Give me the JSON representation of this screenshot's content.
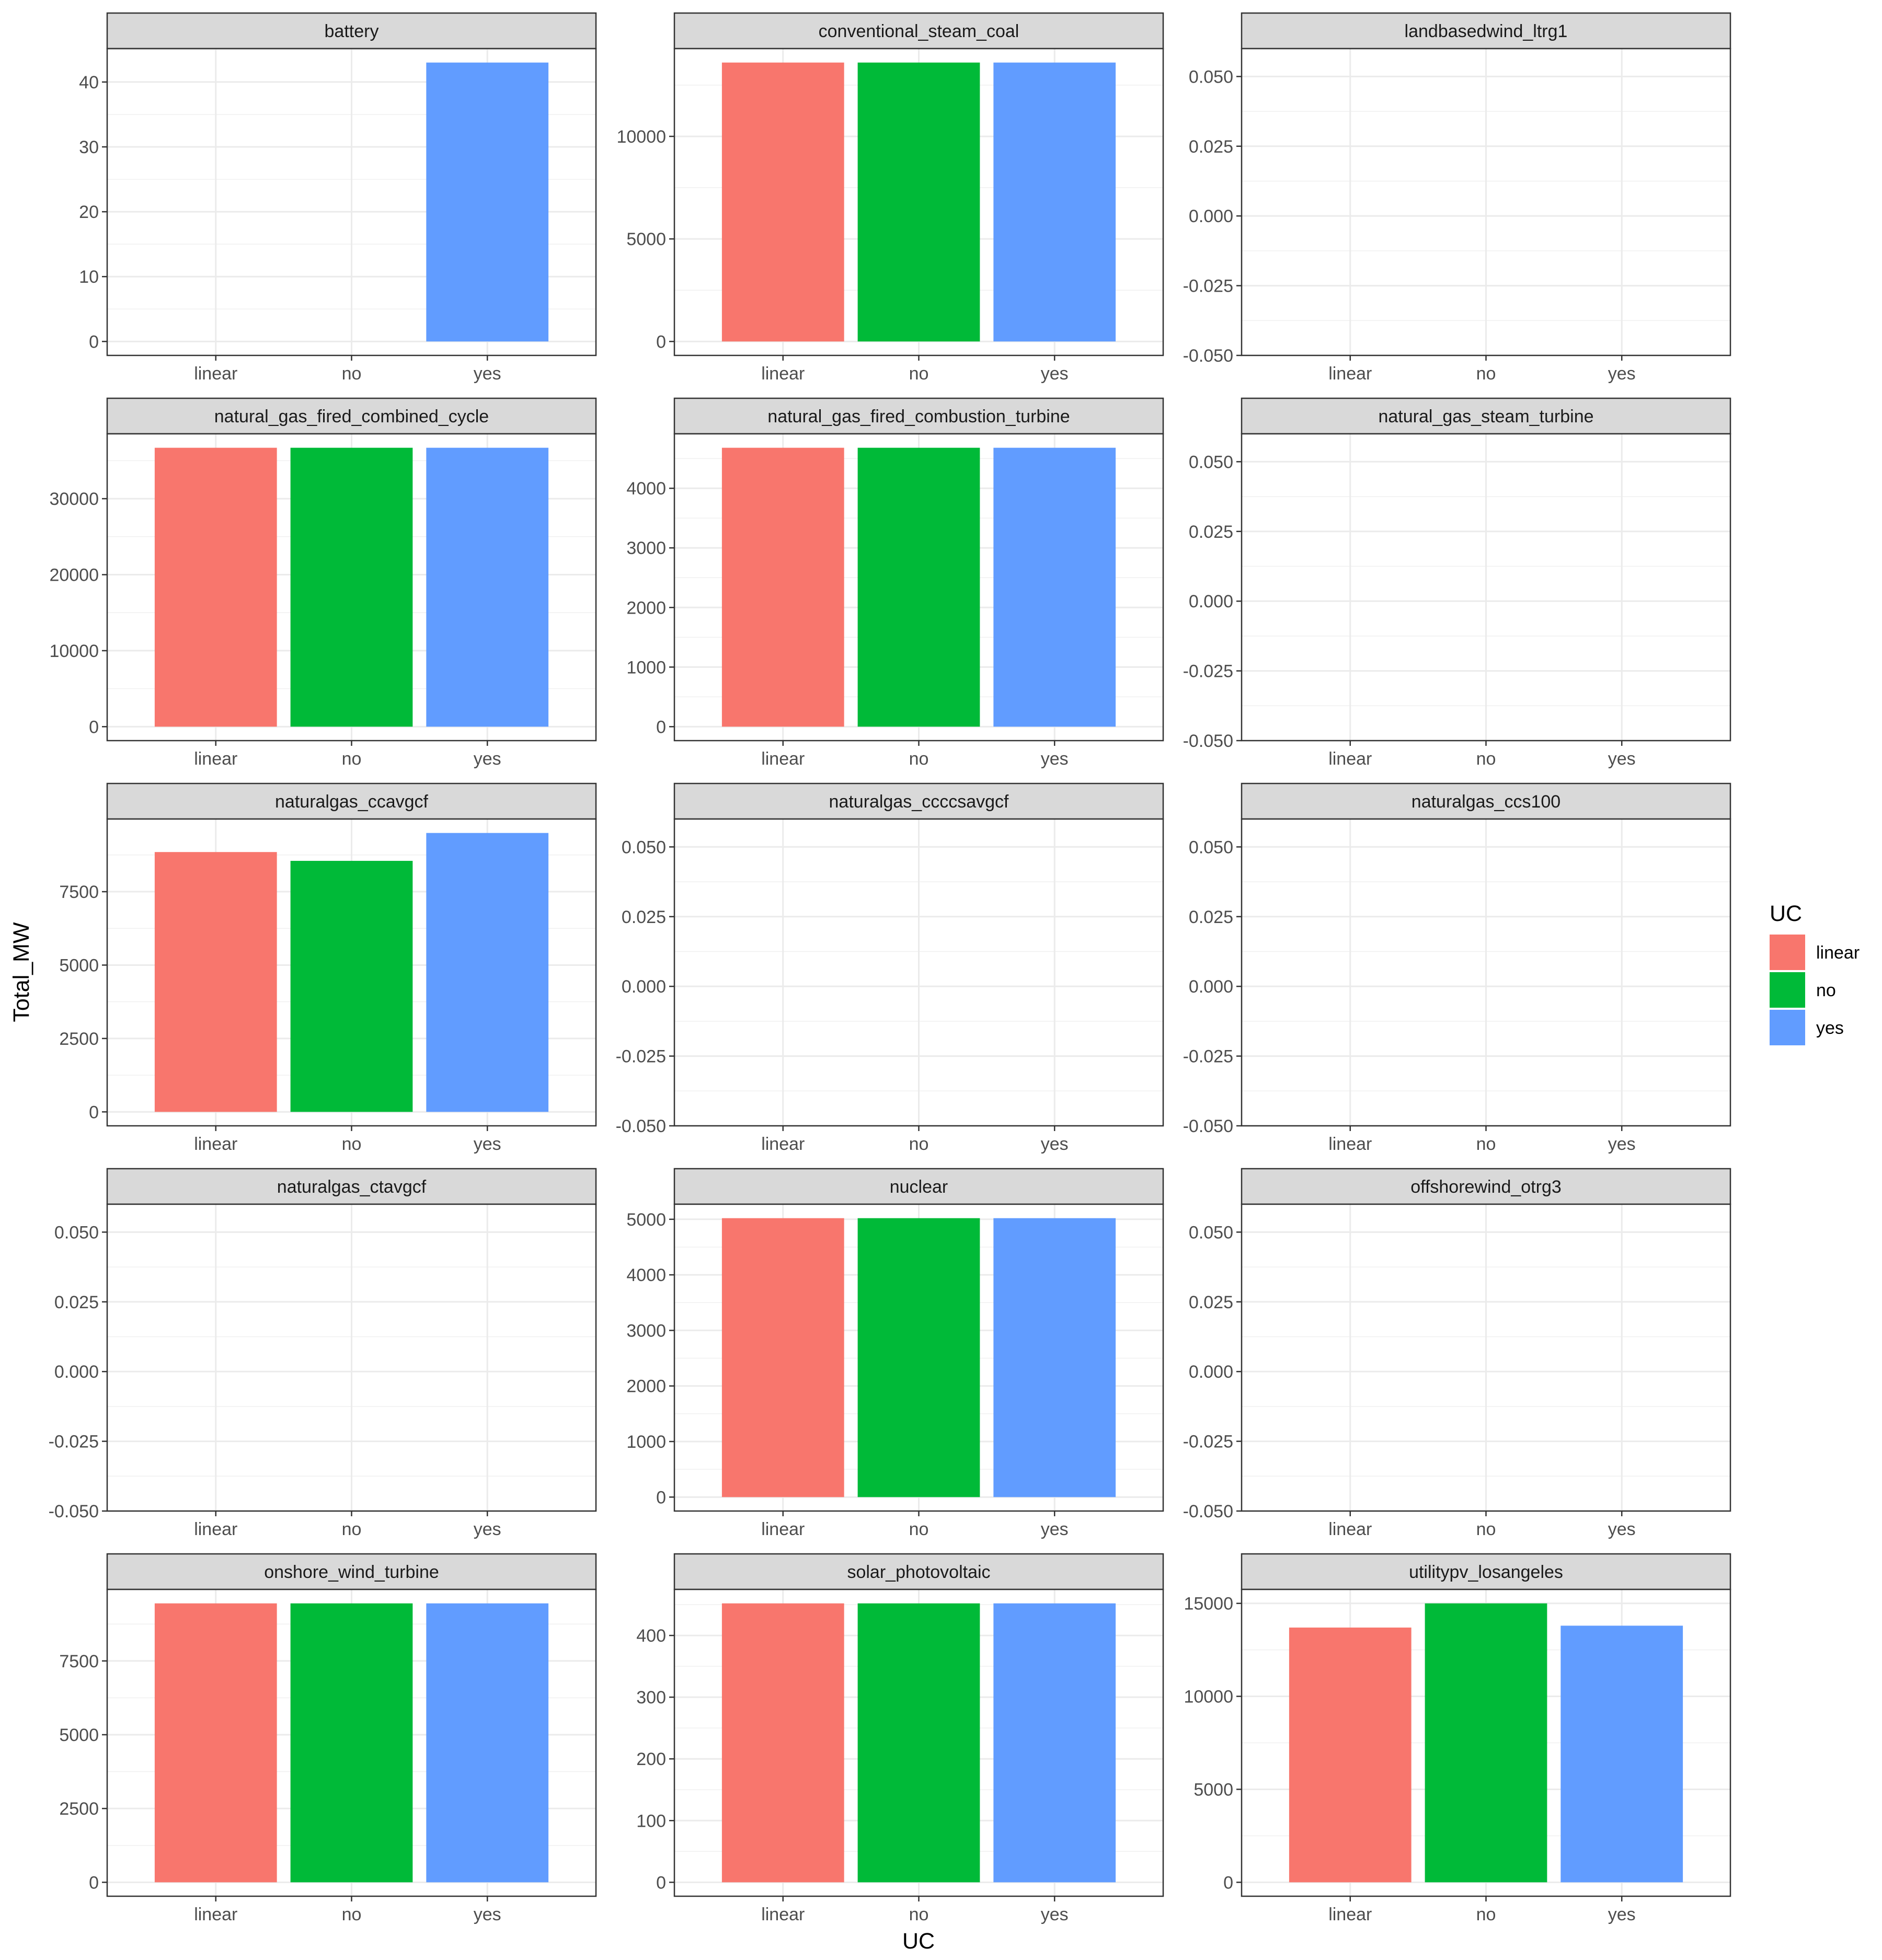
{
  "chart_data": {
    "type": "bar",
    "xlabel": "UC",
    "ylabel": "Total_MW",
    "categories": [
      "linear",
      "no",
      "yes"
    ],
    "legend": {
      "title": "UC",
      "position": "right",
      "entries": [
        "linear",
        "no",
        "yes"
      ]
    },
    "colors": {
      "linear": "#F8766D",
      "no": "#00BA38",
      "yes": "#619CFF"
    },
    "grid": true,
    "facets": [
      {
        "name": "battery",
        "values": [
          0,
          0,
          43
        ],
        "ylim": [
          -2.15,
          45.15
        ],
        "ticks": [
          0,
          10,
          20,
          30,
          40
        ],
        "tick_labels": [
          "0",
          "10",
          "20",
          "30",
          "40"
        ]
      },
      {
        "name": "conventional_steam_coal",
        "values": [
          13600,
          13600,
          13600
        ],
        "ylim": [
          -680,
          14280
        ],
        "ticks": [
          0,
          5000,
          10000
        ],
        "tick_labels": [
          "0",
          "5000",
          "10000"
        ]
      },
      {
        "name": "landbasedwind_ltrg1",
        "values": [
          0,
          0,
          0
        ],
        "ylim": [
          -0.05,
          0.06
        ],
        "ticks": [
          -0.05,
          -0.025,
          0,
          0.025,
          0.05
        ],
        "tick_labels": [
          "-0.050",
          "-0.025",
          "0.000",
          "0.025",
          "0.050"
        ]
      },
      {
        "name": "natural_gas_fired_combined_cycle",
        "values": [
          36700,
          36700,
          36700
        ],
        "ylim": [
          -1835,
          38535
        ],
        "ticks": [
          0,
          10000,
          20000,
          30000
        ],
        "tick_labels": [
          "0",
          "10000",
          "20000",
          "30000"
        ]
      },
      {
        "name": "natural_gas_fired_combustion_turbine",
        "values": [
          4680,
          4680,
          4680
        ],
        "ylim": [
          -234,
          4914
        ],
        "ticks": [
          0,
          1000,
          2000,
          3000,
          4000
        ],
        "tick_labels": [
          "0",
          "1000",
          "2000",
          "3000",
          "4000"
        ]
      },
      {
        "name": "natural_gas_steam_turbine",
        "values": [
          0,
          0,
          0
        ],
        "ylim": [
          -0.05,
          0.06
        ],
        "ticks": [
          -0.05,
          -0.025,
          0,
          0.025,
          0.05
        ],
        "tick_labels": [
          "-0.050",
          "-0.025",
          "0.000",
          "0.025",
          "0.050"
        ]
      },
      {
        "name": "naturalgas_ccavgcf",
        "values": [
          8850,
          8550,
          9500
        ],
        "ylim": [
          -475,
          9975
        ],
        "ticks": [
          0,
          2500,
          5000,
          7500
        ],
        "tick_labels": [
          "0",
          "2500",
          "5000",
          "7500"
        ]
      },
      {
        "name": "naturalgas_ccccsavgcf",
        "values": [
          0,
          0,
          0
        ],
        "ylim": [
          -0.05,
          0.06
        ],
        "ticks": [
          -0.05,
          -0.025,
          0,
          0.025,
          0.05
        ],
        "tick_labels": [
          "-0.050",
          "-0.025",
          "0.000",
          "0.025",
          "0.050"
        ]
      },
      {
        "name": "naturalgas_ccs100",
        "values": [
          0,
          0,
          0
        ],
        "ylim": [
          -0.05,
          0.06
        ],
        "ticks": [
          -0.05,
          -0.025,
          0,
          0.025,
          0.05
        ],
        "tick_labels": [
          "-0.050",
          "-0.025",
          "0.000",
          "0.025",
          "0.050"
        ]
      },
      {
        "name": "naturalgas_ctavgcf",
        "values": [
          0,
          0,
          0
        ],
        "ylim": [
          -0.05,
          0.06
        ],
        "ticks": [
          -0.05,
          -0.025,
          0,
          0.025,
          0.05
        ],
        "tick_labels": [
          "-0.050",
          "-0.025",
          "0.000",
          "0.025",
          "0.050"
        ]
      },
      {
        "name": "nuclear",
        "values": [
          5020,
          5020,
          5020
        ],
        "ylim": [
          -251,
          5271
        ],
        "ticks": [
          0,
          1000,
          2000,
          3000,
          4000,
          5000
        ],
        "tick_labels": [
          "0",
          "1000",
          "2000",
          "3000",
          "4000",
          "5000"
        ]
      },
      {
        "name": "offshorewind_otrg3",
        "values": [
          0,
          0,
          0
        ],
        "ylim": [
          -0.05,
          0.06
        ],
        "ticks": [
          -0.05,
          -0.025,
          0,
          0.025,
          0.05
        ],
        "tick_labels": [
          "-0.050",
          "-0.025",
          "0.000",
          "0.025",
          "0.050"
        ]
      },
      {
        "name": "onshore_wind_turbine",
        "values": [
          9450,
          9450,
          9450
        ],
        "ylim": [
          -472.5,
          9922.5
        ],
        "ticks": [
          0,
          2500,
          5000,
          7500
        ],
        "tick_labels": [
          "0",
          "2500",
          "5000",
          "7500"
        ]
      },
      {
        "name": "solar_photovoltaic",
        "values": [
          452,
          452,
          452
        ],
        "ylim": [
          -22.6,
          474.6
        ],
        "ticks": [
          0,
          100,
          200,
          300,
          400
        ],
        "tick_labels": [
          "0",
          "100",
          "200",
          "300",
          "400"
        ]
      },
      {
        "name": "utilitypv_losangeles",
        "values": [
          13700,
          15000,
          13800
        ],
        "ylim": [
          -750,
          15750
        ],
        "ticks": [
          0,
          5000,
          10000,
          15000
        ],
        "tick_labels": [
          "0",
          "5000",
          "10000",
          "15000"
        ]
      }
    ]
  }
}
